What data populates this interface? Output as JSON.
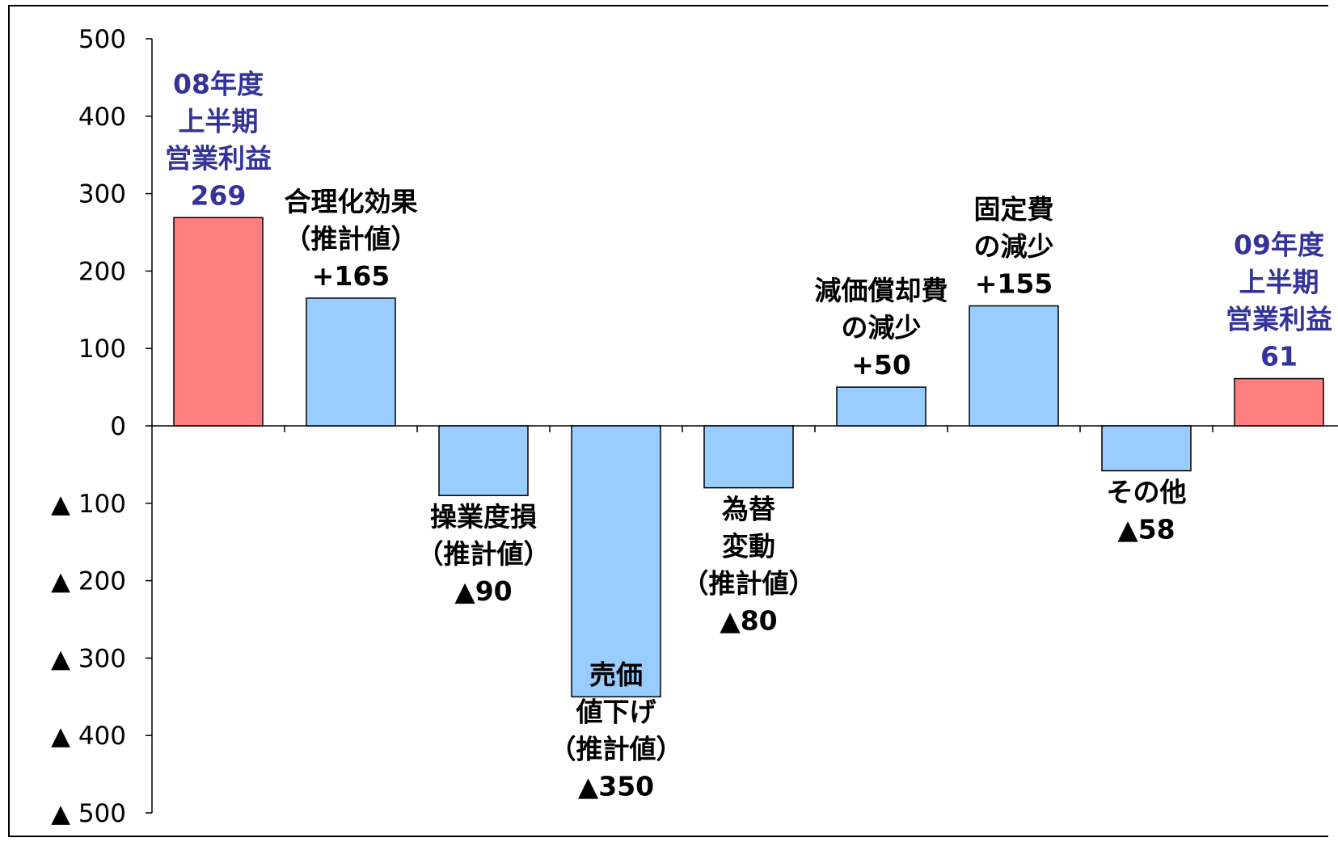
{
  "chart_data": {
    "type": "bar",
    "subtype": "waterfall",
    "title": "",
    "xlabel": "",
    "ylabel": "",
    "ylim": [
      -500,
      500
    ],
    "yticks": [
      500,
      400,
      300,
      200,
      100,
      0,
      -100,
      -200,
      -300,
      -400,
      -500
    ],
    "ytick_labels": [
      "500",
      "400",
      "300",
      "200",
      "100",
      "0",
      "▲ 100",
      "▲ 200",
      "▲ 300",
      "▲ 400",
      "▲ 500"
    ],
    "grid": false,
    "legend": "none",
    "categories": [
      [
        "08年度",
        "上半期",
        "営業利益",
        "269"
      ],
      [
        "合理化効果",
        "（推計値）",
        "+165"
      ],
      [
        "操業度損",
        "（推計値）",
        "▲90"
      ],
      [
        "売価",
        "値下げ",
        "（推計値）",
        "▲350"
      ],
      [
        "為替",
        "変動",
        "（推計値）",
        "▲80"
      ],
      [
        "減価償却費",
        "の減少",
        "+50"
      ],
      [
        "固定費",
        "の減少",
        "+155"
      ],
      [
        "その他",
        "▲58"
      ],
      [
        "09年度",
        "上半期",
        "営業利益",
        "61"
      ]
    ],
    "values": [
      269,
      165,
      -90,
      -350,
      -80,
      50,
      155,
      -58,
      61
    ],
    "kinds": [
      "total",
      "change",
      "change",
      "change",
      "change",
      "change",
      "change",
      "change",
      "total"
    ],
    "colors": {
      "total_fill": "#ff7f7f",
      "change_fill": "#99ccff",
      "total_label": "#333399",
      "change_label": "#000000",
      "bar_stroke": "#000000"
    }
  }
}
